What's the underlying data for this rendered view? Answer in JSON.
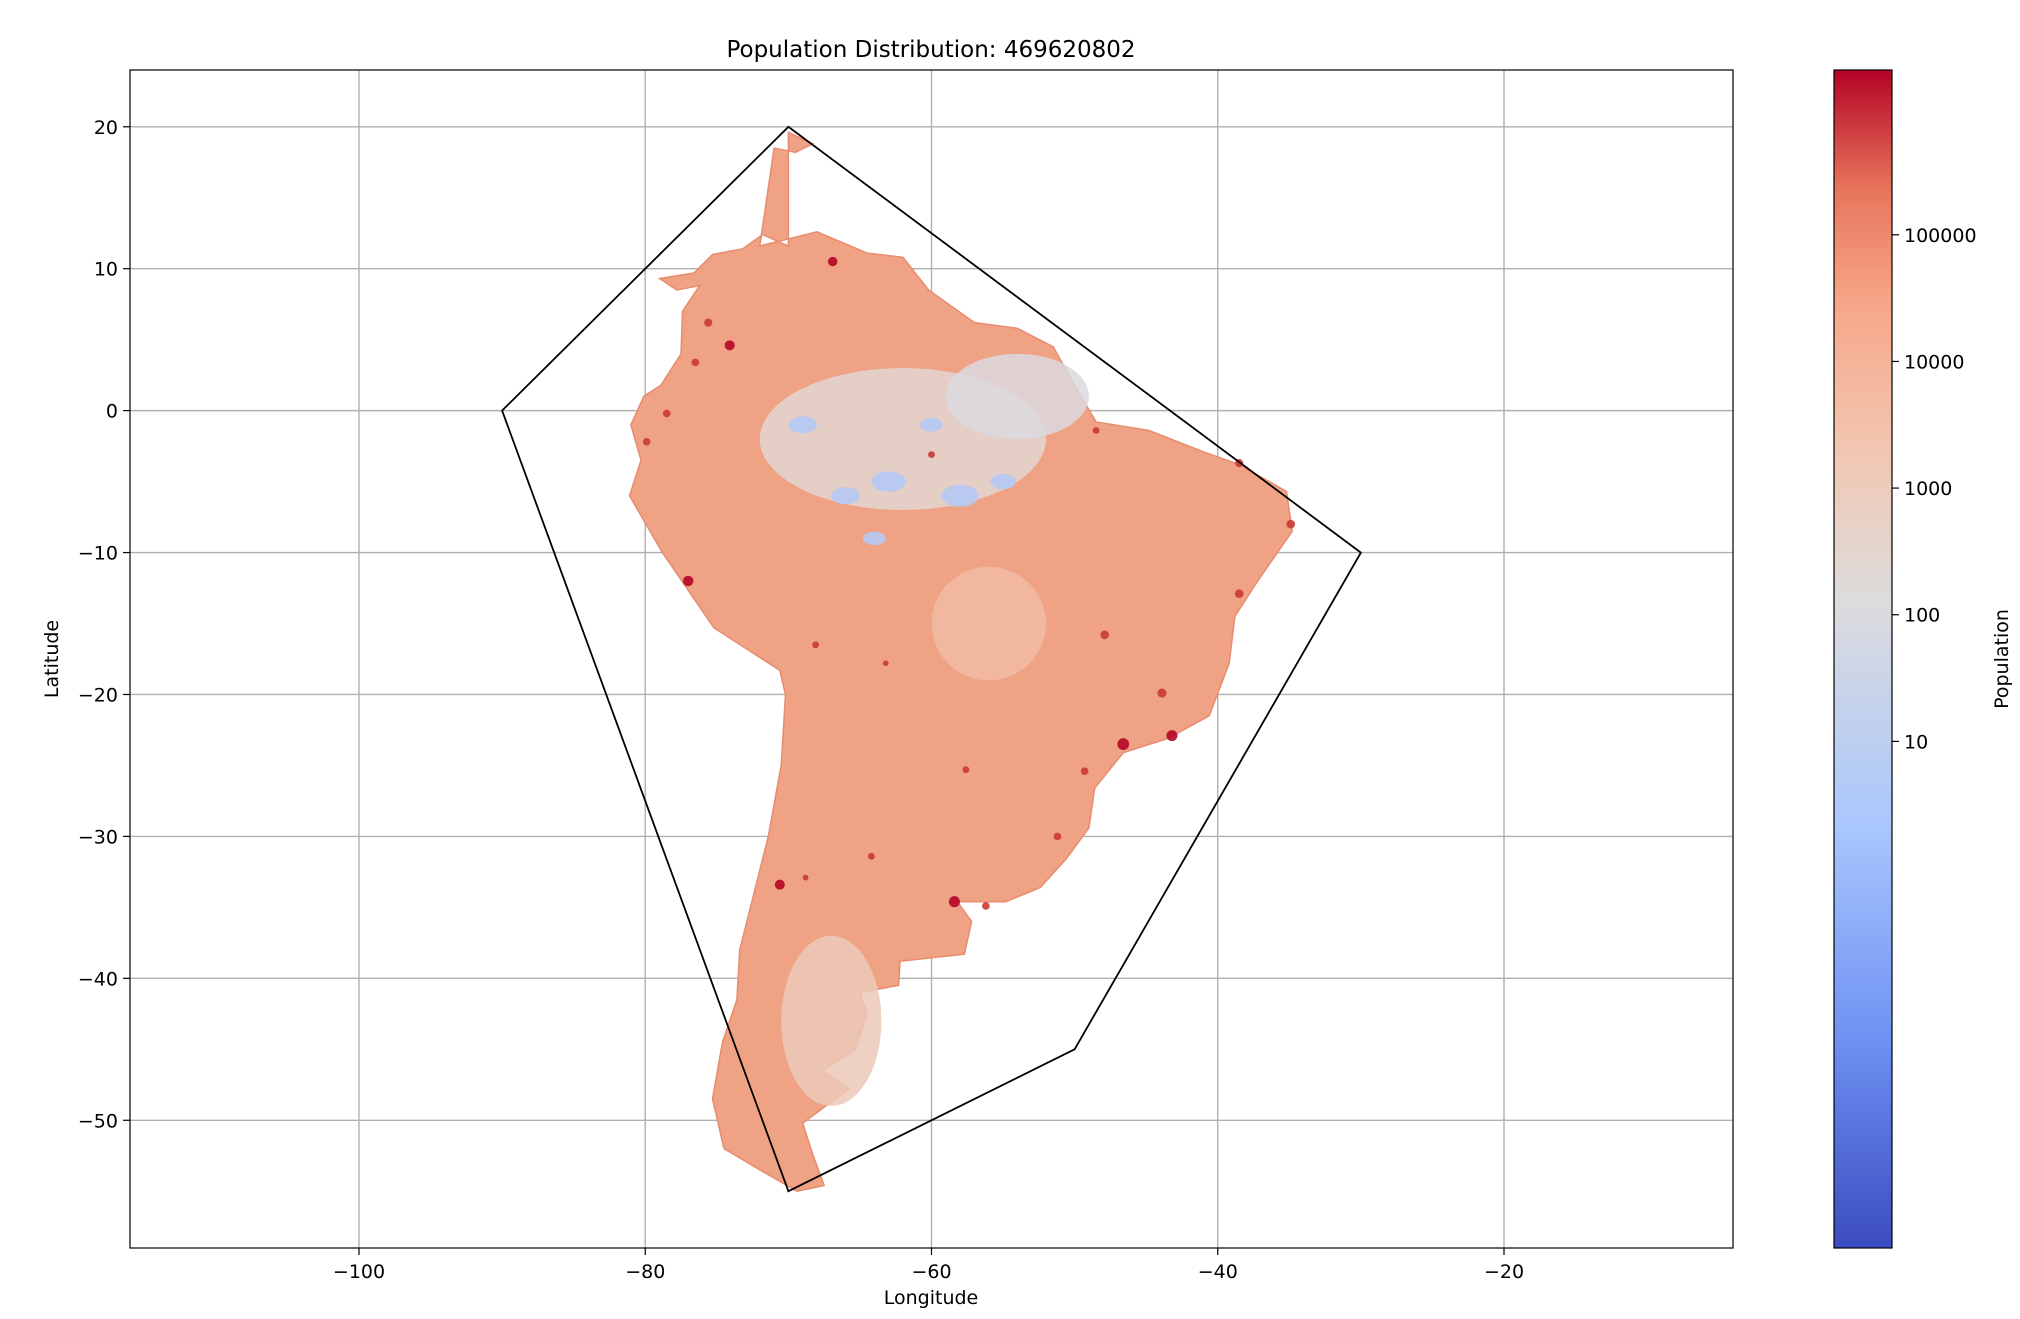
{
  "chart_data": {
    "type": "heatmap",
    "title": "Population Distribution: 469620802",
    "xlabel": "Longitude",
    "ylabel": "Latitude",
    "xlim": [
      -116,
      -4
    ],
    "ylim": [
      -59,
      24
    ],
    "xticks": [
      -100,
      -80,
      -60,
      -40,
      -20
    ],
    "xtick_labels": [
      "−100",
      "−80",
      "−60",
      "−40",
      "−20"
    ],
    "yticks": [
      20,
      10,
      0,
      -10,
      -20,
      -30,
      -40,
      -50
    ],
    "ytick_labels": [
      "20",
      "10",
      "0",
      "−10",
      "−20",
      "−30",
      "−40",
      "−50"
    ],
    "grid": true,
    "boundary_polygon": [
      [
        -70,
        20
      ],
      [
        -30,
        -10
      ],
      [
        -50,
        -45
      ],
      [
        -70,
        -55
      ],
      [
        -90,
        0
      ]
    ],
    "colorbar": {
      "label": "Population",
      "scale": "log",
      "colormap": "coolwarm",
      "range": [
        0.001,
        2000000
      ],
      "ticks": [
        10,
        100,
        1000,
        10000,
        100000
      ],
      "tick_labels": [
        "10",
        "100",
        "1000",
        "10000",
        "100000"
      ],
      "colors": [
        "#3b4cc0",
        "#6f92f3",
        "#aac7fd",
        "#dddcdc",
        "#f7b194",
        "#e7745b",
        "#b40426"
      ]
    },
    "landmass_outline": [
      [
        -70,
        19.6
      ],
      [
        -68.3,
        18.8
      ],
      [
        -69.5,
        18.2
      ],
      [
        -71,
        18.5
      ],
      [
        -72,
        11.6
      ],
      [
        -68,
        12.6
      ],
      [
        -64.5,
        11.1
      ],
      [
        -62,
        10.8
      ],
      [
        -60.2,
        8.5
      ],
      [
        -57,
        6.2
      ],
      [
        -54,
        5.8
      ],
      [
        -51.5,
        4.5
      ],
      [
        -50,
        1.8
      ],
      [
        -48.5,
        -0.8
      ],
      [
        -44.8,
        -1.4
      ],
      [
        -41,
        -2.9
      ],
      [
        -38.5,
        -3.8
      ],
      [
        -35.2,
        -5.7
      ],
      [
        -34.8,
        -8.5
      ],
      [
        -37.2,
        -12
      ],
      [
        -38.8,
        -14.5
      ],
      [
        -39.2,
        -17.8
      ],
      [
        -40.6,
        -21.5
      ],
      [
        -43.5,
        -23.1
      ],
      [
        -46.6,
        -24.1
      ],
      [
        -48.6,
        -26.6
      ],
      [
        -49,
        -29.4
      ],
      [
        -50.6,
        -31.6
      ],
      [
        -52.4,
        -33.6
      ],
      [
        -54.8,
        -34.6
      ],
      [
        -58.2,
        -34.6
      ],
      [
        -57.2,
        -36
      ],
      [
        -57.7,
        -38.3
      ],
      [
        -62.2,
        -38.8
      ],
      [
        -62.3,
        -40.5
      ],
      [
        -65,
        -41
      ],
      [
        -64.5,
        -42.5
      ],
      [
        -65.3,
        -45
      ],
      [
        -67.6,
        -46.5
      ],
      [
        -65.8,
        -47.8
      ],
      [
        -69,
        -50.2
      ],
      [
        -68.3,
        -52.4
      ],
      [
        -67.5,
        -54.6
      ],
      [
        -69.4,
        -55
      ],
      [
        -72,
        -53.5
      ],
      [
        -74.5,
        -52
      ],
      [
        -75.3,
        -48.5
      ],
      [
        -74.6,
        -44.5
      ],
      [
        -73.6,
        -41.5
      ],
      [
        -73.4,
        -38
      ],
      [
        -72.4,
        -34
      ],
      [
        -71.4,
        -30
      ],
      [
        -70.5,
        -25
      ],
      [
        -70.2,
        -20
      ],
      [
        -70.6,
        -18.3
      ],
      [
        -75.2,
        -15.3
      ],
      [
        -78.8,
        -10
      ],
      [
        -81.1,
        -6
      ],
      [
        -80.3,
        -3.5
      ],
      [
        -81,
        -1
      ],
      [
        -80.1,
        1
      ],
      [
        -78.9,
        1.8
      ],
      [
        -77.5,
        4
      ],
      [
        -77.4,
        7
      ],
      [
        -76.2,
        8.8
      ],
      [
        -77.8,
        8.5
      ],
      [
        -79,
        9.3
      ],
      [
        -76.6,
        9.7
      ],
      [
        -75.3,
        11
      ],
      [
        -73.2,
        11.4
      ],
      [
        -71.8,
        12.4
      ],
      [
        -70,
        11.6
      ]
    ],
    "cities": [
      {
        "lon": -46.6,
        "lat": -23.5,
        "value": 2000000
      },
      {
        "lon": -43.2,
        "lat": -22.9,
        "value": 1500000
      },
      {
        "lon": -58.4,
        "lat": -34.6,
        "value": 1500000
      },
      {
        "lon": -77.0,
        "lat": -12.0,
        "value": 1200000
      },
      {
        "lon": -74.1,
        "lat": 4.6,
        "value": 1000000
      },
      {
        "lon": -70.6,
        "lat": -33.4,
        "value": 1000000
      },
      {
        "lon": -66.9,
        "lat": 10.5,
        "value": 800000
      },
      {
        "lon": -47.9,
        "lat": -15.8,
        "value": 600000
      },
      {
        "lon": -43.9,
        "lat": -19.9,
        "value": 700000
      },
      {
        "lon": -38.5,
        "lat": -12.9,
        "value": 600000
      },
      {
        "lon": -34.9,
        "lat": -8.0,
        "value": 600000
      },
      {
        "lon": -38.5,
        "lat": -3.7,
        "value": 500000
      },
      {
        "lon": -75.6,
        "lat": 6.2,
        "value": 500000
      },
      {
        "lon": -76.5,
        "lat": 3.4,
        "value": 400000
      },
      {
        "lon": -78.5,
        "lat": -0.2,
        "value": 400000
      },
      {
        "lon": -79.9,
        "lat": -2.2,
        "value": 400000
      },
      {
        "lon": -68.1,
        "lat": -16.5,
        "value": 300000
      },
      {
        "lon": -63.2,
        "lat": -17.8,
        "value": 200000
      },
      {
        "lon": -57.6,
        "lat": -25.3,
        "value": 300000
      },
      {
        "lon": -56.2,
        "lat": -34.9,
        "value": 400000
      },
      {
        "lon": -64.2,
        "lat": -31.4,
        "value": 300000
      },
      {
        "lon": -68.8,
        "lat": -32.9,
        "value": 200000
      },
      {
        "lon": -60.0,
        "lat": -3.1,
        "value": 300000
      },
      {
        "lon": -48.5,
        "lat": -1.4,
        "value": 300000
      },
      {
        "lon": -49.3,
        "lat": -25.4,
        "value": 400000
      },
      {
        "lon": -51.2,
        "lat": -30.0,
        "value": 400000
      }
    ]
  }
}
